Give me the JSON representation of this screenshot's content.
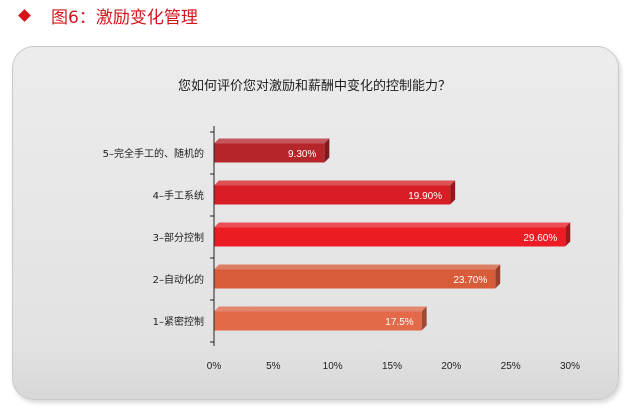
{
  "header": {
    "title": "图6：激励变化管理"
  },
  "chart_data": {
    "type": "bar",
    "orientation": "horizontal",
    "title": "您如何评价您对激励和薪酬中变化的控制能力？",
    "categories": [
      "5–完全手工的、随机的",
      "4–手工系统",
      "3–部分控制",
      "2–自动化的",
      "1–紧密控制"
    ],
    "values": [
      9.3,
      19.9,
      29.6,
      23.7,
      17.5
    ],
    "data_labels": [
      "9.30%",
      "19.90%",
      "29.60%",
      "23.70%",
      "17.5%"
    ],
    "bar_colors": [
      "#b5262b",
      "#d81d26",
      "#ec1c24",
      "#d95c3a",
      "#e36a48"
    ],
    "xlim": [
      0,
      30
    ],
    "x_ticks": [
      0,
      5,
      10,
      15,
      20,
      25,
      30
    ],
    "x_tick_labels": [
      "0%",
      "5%",
      "10%",
      "15%",
      "20%",
      "25%",
      "30%"
    ],
    "grid": false,
    "legend": "none"
  }
}
